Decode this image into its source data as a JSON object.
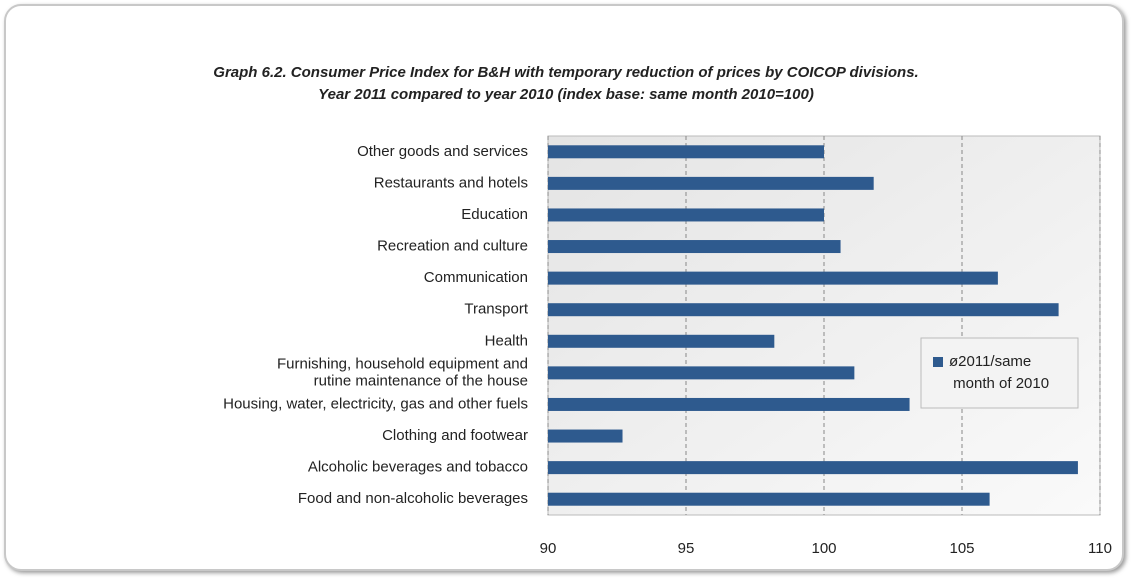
{
  "chart_data": {
    "type": "bar",
    "orientation": "horizontal",
    "title": "Graph 6.2. Consumer Price Index for B&H with temporary reduction of prices by COICOP divisions.\nYear 2011 compared to year 2010 (index base: same month 2010=100)",
    "categories": [
      "Other goods and services",
      "Restaurants and hotels",
      "Education",
      "Recreation and culture",
      "Communication",
      "Transport",
      "Health",
      "Furnishing, household equipment and\nrutine maintenance of the house",
      "Housing, water, electricity, gas and other fuels",
      "Clothing and footwear",
      "Alcoholic beverages and tobacco",
      "Food and non-alcoholic beverages"
    ],
    "series": [
      {
        "name": "ø2011/same month of 2010",
        "color": "#2e5a8e",
        "values": [
          100.0,
          101.8,
          100.0,
          100.6,
          106.3,
          108.5,
          98.2,
          101.1,
          103.1,
          92.7,
          109.2,
          106.0
        ]
      }
    ],
    "xlim": [
      90,
      110
    ],
    "xticks": [
      90,
      95,
      100,
      105,
      110
    ],
    "grid": true,
    "legend": "right"
  }
}
